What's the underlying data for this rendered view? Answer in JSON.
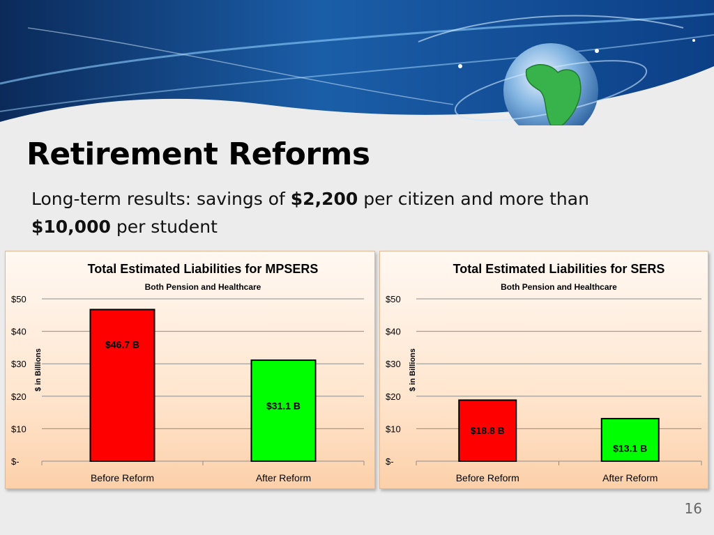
{
  "slide": {
    "title": "Retirement Reforms",
    "subtitle_parts": [
      {
        "text": "Long-term results: savings of ",
        "bold": false
      },
      {
        "text": "$2,200",
        "bold": true
      },
      {
        "text": " per citizen and more than ",
        "bold": false
      },
      {
        "text": "$10,000",
        "bold": true
      },
      {
        "text": " per student",
        "bold": false
      }
    ],
    "page_number": "16"
  },
  "colors": {
    "before_bar": "#ff0000",
    "after_bar": "#00ff00",
    "grid": "#8c8c8c",
    "panel_border": "#e2b997"
  },
  "chart_data": [
    {
      "type": "bar",
      "title": "Total Estimated Liabilities for MPSERS",
      "subtitle": "Both Pension and Healthcare",
      "ylabel": "$ in Billions",
      "xlabel": "",
      "ylim": [
        0,
        50
      ],
      "yticks": [
        0,
        10,
        20,
        30,
        40,
        50
      ],
      "ytick_labels": [
        "$-",
        "$10",
        "$20",
        "$30",
        "$40",
        "$50"
      ],
      "categories": [
        "Before Reform",
        "After Reform"
      ],
      "values": [
        46.7,
        31.1
      ],
      "data_labels": [
        "$46.7 B",
        "$31.1 B"
      ],
      "bar_colors": [
        "#ff0000",
        "#00ff00"
      ],
      "grid": true,
      "legend": "none"
    },
    {
      "type": "bar",
      "title": "Total Estimated Liabilities for SERS",
      "subtitle": "Both Pension and Healthcare",
      "ylabel": "$ in Billions",
      "xlabel": "",
      "ylim": [
        0,
        50
      ],
      "yticks": [
        0,
        10,
        20,
        30,
        40,
        50
      ],
      "ytick_labels": [
        "$-",
        "$10",
        "$20",
        "$30",
        "$40",
        "$50"
      ],
      "categories": [
        "Before Reform",
        "After Reform"
      ],
      "values": [
        18.8,
        13.1
      ],
      "data_labels": [
        "$18.8 B",
        "$13.1 B"
      ],
      "bar_colors": [
        "#ff0000",
        "#00ff00"
      ],
      "grid": true,
      "legend": "none"
    }
  ]
}
